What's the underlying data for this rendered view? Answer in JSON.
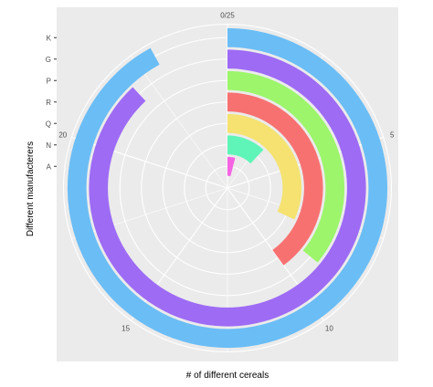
{
  "chart_data": {
    "type": "bar",
    "coord": "polar",
    "categories": [
      "A",
      "N",
      "Q",
      "R",
      "P",
      "G",
      "K"
    ],
    "values": [
      1,
      3,
      8,
      10,
      9,
      22,
      23
    ],
    "colors": [
      "#F564E3",
      "#5FF5B8",
      "#F5E270",
      "#F87171",
      "#9CF56B",
      "#9E6BF5",
      "#6BBDF5"
    ],
    "xlabel": "# of different cereals",
    "ylabel": "Different manufacterers",
    "xlim": [
      0,
      25
    ],
    "x_ticks": [
      "0/25",
      "5",
      "10",
      "15",
      "20"
    ],
    "x_tick_values": [
      0,
      5,
      10,
      15,
      20
    ],
    "y_ticks": [
      "K",
      "G",
      "P",
      "R",
      "Q",
      "N",
      "A"
    ],
    "panel_background": "#EBEBEB",
    "grid": true
  }
}
